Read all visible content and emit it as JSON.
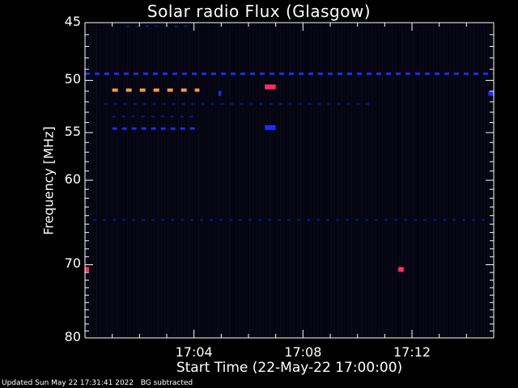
{
  "footer": {
    "updated": "Updated Sun May 22 17:31:41 2022",
    "note": "BG subtracted"
  },
  "chart_data": {
    "type": "heatmap",
    "title": "Solar radio Flux (Glasgow)",
    "xlabel": "Start Time (22-May-22 17:00:00)",
    "ylabel": "Frequency [MHz]",
    "xlim_minutes": [
      0,
      15
    ],
    "ylim": [
      45,
      80
    ],
    "y_scale": "log",
    "yticks": [
      45,
      50,
      55,
      60,
      70,
      80
    ],
    "ytick_labels": [
      "45",
      "50",
      "55",
      "60",
      "70",
      "80"
    ],
    "xticks_minutes": [
      4,
      8,
      12
    ],
    "xtick_labels": [
      "17:04",
      "17:08",
      "17:12"
    ],
    "colors": {
      "background": "#000000",
      "plot_background": "#05050f",
      "weak": "#0a14a0",
      "medium": "#1e2cff",
      "strong": "#ff9a4a",
      "spike": "#ff2a6a"
    },
    "features": [
      {
        "kind": "dashed",
        "freq": 50.9,
        "t0": 1.0,
        "t1": 4.2,
        "level": "strong"
      },
      {
        "kind": "dashed",
        "freq": 54.6,
        "t0": 1.0,
        "t1": 4.2,
        "level": "medium"
      },
      {
        "kind": "dashed",
        "freq": 53.4,
        "t0": 1.0,
        "t1": 4.2,
        "level": "weak"
      },
      {
        "kind": "dashed",
        "freq": 52.2,
        "t0": 0.7,
        "t1": 10.5,
        "level": "weak"
      },
      {
        "kind": "dashed",
        "freq": 49.4,
        "t0": 0.0,
        "t1": 15.0,
        "level": "medium"
      },
      {
        "kind": "dashed",
        "freq": 45.3,
        "t0": 1.5,
        "t1": 4.0,
        "level": "weak"
      },
      {
        "kind": "dashed",
        "freq": 64.5,
        "t0": 0.3,
        "t1": 15.0,
        "level": "weak"
      },
      {
        "kind": "spot",
        "freq": 50.6,
        "t0": 6.6,
        "t1": 7.0,
        "level": "spike"
      },
      {
        "kind": "spot",
        "freq": 54.5,
        "t0": 6.6,
        "t1": 7.0,
        "level": "medium"
      },
      {
        "kind": "spot",
        "freq": 70.6,
        "t0": 0.0,
        "t1": 0.15,
        "level": "spike"
      },
      {
        "kind": "spot",
        "freq": 70.6,
        "t0": 11.5,
        "t1": 11.7,
        "level": "spike"
      },
      {
        "kind": "spot",
        "freq": 51.2,
        "t0": 14.8,
        "t1": 15.0,
        "level": "medium"
      },
      {
        "kind": "spot",
        "freq": 51.2,
        "t0": 4.9,
        "t1": 5.0,
        "level": "medium"
      }
    ]
  }
}
